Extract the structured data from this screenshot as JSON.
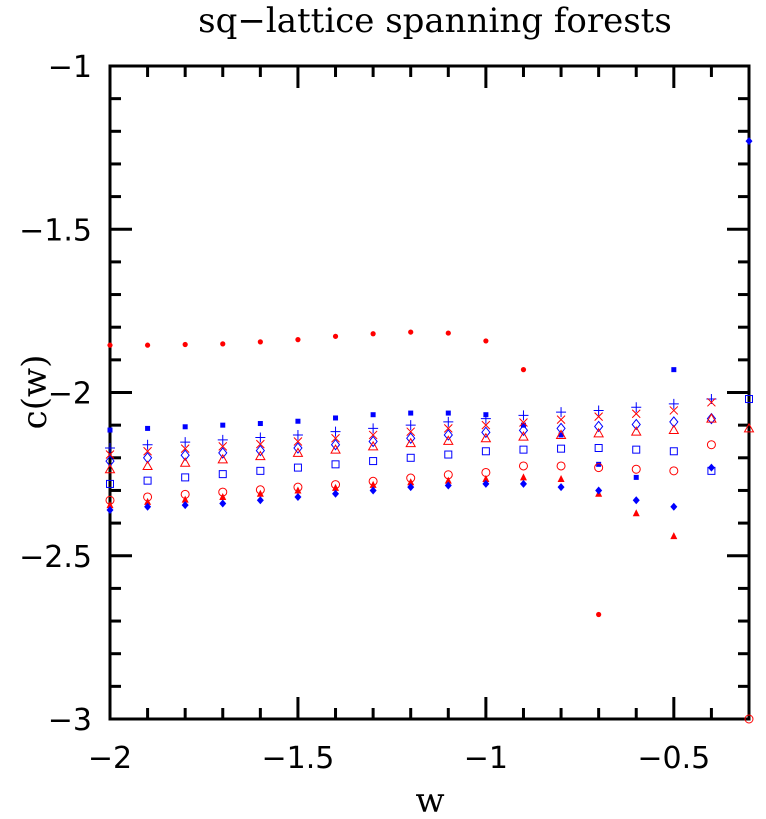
{
  "chart_data": {
    "type": "scatter",
    "title": "sq−lattice spanning forests",
    "xlabel": "w",
    "ylabel": "c(w)",
    "xlim": [
      -2,
      -0.3
    ],
    "ylim": [
      -3,
      -1
    ],
    "xticks": [
      {
        "value": -2,
        "label": "−2"
      },
      {
        "value": -1.5,
        "label": "−1.5"
      },
      {
        "value": -1,
        "label": "−1"
      },
      {
        "value": -0.5,
        "label": "−0.5"
      }
    ],
    "yticks": [
      {
        "value": -1,
        "label": "−1"
      },
      {
        "value": -1.5,
        "label": "−1.5"
      },
      {
        "value": -2,
        "label": "−2"
      },
      {
        "value": -2.5,
        "label": "−2.5"
      },
      {
        "value": -3,
        "label": "−3"
      }
    ],
    "minor_step_x": 0.1,
    "minor_step_y": 0.1,
    "grid": false,
    "colors": {
      "red": "#ff0000",
      "blue": "#0000ff",
      "black": "#000000"
    },
    "series": [
      {
        "marker": "dot",
        "color": "#ff0000",
        "x": [
          -2.0,
          -1.9,
          -1.8,
          -1.7,
          -1.6,
          -1.5,
          -1.4,
          -1.3,
          -1.2,
          -1.1,
          -1.0,
          -0.9,
          -0.7
        ],
        "y": [
          -1.855,
          -1.855,
          -1.853,
          -1.851,
          -1.845,
          -1.838,
          -1.828,
          -1.82,
          -1.815,
          -1.818,
          -1.842,
          -1.93,
          -2.68
        ]
      },
      {
        "marker": "filled-square",
        "color": "#0000ff",
        "x": [
          -2.0,
          -1.9,
          -1.8,
          -1.7,
          -1.6,
          -1.5,
          -1.4,
          -1.3,
          -1.2,
          -1.1,
          -1.0,
          -0.9,
          -0.8,
          -0.7,
          -0.6,
          -0.5
        ],
        "y": [
          -2.115,
          -2.11,
          -2.105,
          -2.1,
          -2.095,
          -2.088,
          -2.078,
          -2.068,
          -2.063,
          -2.063,
          -2.068,
          -2.1,
          -2.13,
          -2.22,
          -2.26,
          -1.93
        ]
      },
      {
        "marker": "plus",
        "color": "#0000ff",
        "x": [
          -2.0,
          -1.9,
          -1.8,
          -1.7,
          -1.6,
          -1.5,
          -1.4,
          -1.3,
          -1.2,
          -1.1,
          -1.0,
          -0.9,
          -0.8,
          -0.7,
          -0.6,
          -0.5,
          -0.4
        ],
        "y": [
          -2.17,
          -2.16,
          -2.152,
          -2.145,
          -2.138,
          -2.13,
          -2.12,
          -2.11,
          -2.1,
          -2.09,
          -2.08,
          -2.07,
          -2.06,
          -2.055,
          -2.045,
          -2.035,
          -2.02
        ]
      },
      {
        "marker": "cross",
        "color": "#ff0000",
        "x": [
          -2.0,
          -1.9,
          -1.8,
          -1.7,
          -1.6,
          -1.5,
          -1.4,
          -1.3,
          -1.2,
          -1.1,
          -1.0,
          -0.9,
          -0.8,
          -0.7,
          -0.6,
          -0.5,
          -0.4
        ],
        "y": [
          -2.19,
          -2.18,
          -2.172,
          -2.165,
          -2.158,
          -2.15,
          -2.14,
          -2.13,
          -2.12,
          -2.11,
          -2.1,
          -2.092,
          -2.083,
          -2.074,
          -2.065,
          -2.055,
          -2.03
        ]
      },
      {
        "marker": "open-diamond",
        "color": "#0000ff",
        "x": [
          -2.0,
          -1.9,
          -1.8,
          -1.7,
          -1.6,
          -1.5,
          -1.4,
          -1.3,
          -1.2,
          -1.1,
          -1.0,
          -0.9,
          -0.8,
          -0.7,
          -0.6,
          -0.5,
          -0.4
        ],
        "y": [
          -2.21,
          -2.2,
          -2.192,
          -2.185,
          -2.178,
          -2.17,
          -2.16,
          -2.15,
          -2.14,
          -2.13,
          -2.122,
          -2.116,
          -2.11,
          -2.104,
          -2.098,
          -2.09,
          -2.08
        ]
      },
      {
        "marker": "open-triangle",
        "color": "#ff0000",
        "x": [
          -2.0,
          -1.9,
          -1.8,
          -1.7,
          -1.6,
          -1.5,
          -1.4,
          -1.3,
          -1.2,
          -1.1,
          -1.0,
          -0.9,
          -0.8,
          -0.7,
          -0.6,
          -0.5,
          -0.4,
          -0.3
        ],
        "y": [
          -2.235,
          -2.225,
          -2.215,
          -2.205,
          -2.195,
          -2.185,
          -2.175,
          -2.165,
          -2.155,
          -2.148,
          -2.14,
          -2.135,
          -2.13,
          -2.125,
          -2.12,
          -2.115,
          -2.08,
          -2.11
        ]
      },
      {
        "marker": "open-square",
        "color": "#0000ff",
        "x": [
          -2.0,
          -1.9,
          -1.8,
          -1.7,
          -1.6,
          -1.5,
          -1.4,
          -1.3,
          -1.2,
          -1.1,
          -1.0,
          -0.9,
          -0.8,
          -0.7,
          -0.6,
          -0.5,
          -0.4,
          -0.3
        ],
        "y": [
          -2.28,
          -2.27,
          -2.26,
          -2.25,
          -2.24,
          -2.23,
          -2.22,
          -2.21,
          -2.2,
          -2.19,
          -2.18,
          -2.175,
          -2.172,
          -2.17,
          -2.175,
          -2.18,
          -2.24,
          -2.02
        ]
      },
      {
        "marker": "open-circle",
        "color": "#ff0000",
        "x": [
          -2.0,
          -1.9,
          -1.8,
          -1.7,
          -1.6,
          -1.5,
          -1.4,
          -1.3,
          -1.2,
          -1.1,
          -1.0,
          -0.9,
          -0.8,
          -0.7,
          -0.6,
          -0.5,
          -0.4,
          -0.3
        ],
        "y": [
          -2.33,
          -2.32,
          -2.312,
          -2.305,
          -2.298,
          -2.29,
          -2.282,
          -2.272,
          -2.262,
          -2.252,
          -2.245,
          -2.225,
          -2.225,
          -2.23,
          -2.235,
          -2.24,
          -2.16,
          -3.0
        ]
      },
      {
        "marker": "filled-triangle",
        "color": "#ff0000",
        "x": [
          -2.0,
          -1.9,
          -1.8,
          -1.7,
          -1.6,
          -1.5,
          -1.4,
          -1.3,
          -1.2,
          -1.1,
          -1.0,
          -0.9,
          -0.8,
          -0.7,
          -0.6,
          -0.5
        ],
        "y": [
          -2.345,
          -2.335,
          -2.328,
          -2.32,
          -2.31,
          -2.3,
          -2.292,
          -2.283,
          -2.275,
          -2.27,
          -2.265,
          -2.26,
          -2.265,
          -2.31,
          -2.37,
          -2.44
        ]
      },
      {
        "marker": "filled-diamond",
        "color": "#0000ff",
        "x": [
          -2.0,
          -1.9,
          -1.8,
          -1.7,
          -1.6,
          -1.5,
          -1.4,
          -1.3,
          -1.2,
          -1.1,
          -1.0,
          -0.9,
          -0.8,
          -0.7,
          -0.6,
          -0.5,
          -0.4,
          -0.3
        ],
        "y": [
          -2.36,
          -2.35,
          -2.345,
          -2.34,
          -2.33,
          -2.32,
          -2.31,
          -2.3,
          -2.29,
          -2.285,
          -2.28,
          -2.28,
          -2.29,
          -2.3,
          -2.33,
          -2.35,
          -2.23,
          -1.23
        ]
      }
    ]
  }
}
